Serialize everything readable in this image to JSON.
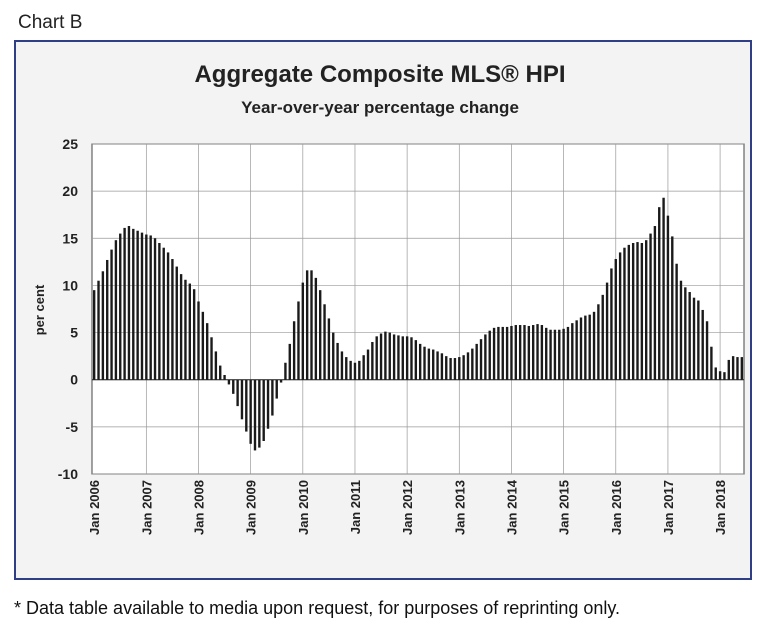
{
  "page_label": "Chart B",
  "footnote": "* Data table available to media upon request, for purposes of reprinting only.",
  "colors": {
    "frame_border": "#2f3f86",
    "background": "#f3f3f3",
    "bars": "#1a1a1a",
    "grid": "#999999"
  },
  "chart_data": {
    "type": "bar",
    "title": "Aggregate Composite MLS® HPI",
    "subtitle": "Year-over-year percentage change",
    "xlabel": "",
    "ylabel": "per cent",
    "ylim": [
      -10,
      25
    ],
    "yticks": [
      25,
      20,
      15,
      10,
      5,
      0,
      -5,
      -10
    ],
    "xtick_labels": [
      "Jan 2006",
      "Jan 2007",
      "Jan 2008",
      "Jan 2009",
      "Jan 2010",
      "Jan 2011",
      "Jan 2012",
      "Jan 2013",
      "Jan 2014",
      "Jan 2015",
      "Jan 2016",
      "Jan 2017",
      "Jan 2018"
    ],
    "grid": true,
    "legend": "none",
    "period_start": "Jan 2006",
    "frequency": "monthly",
    "values": [
      9.5,
      10.5,
      11.5,
      12.7,
      13.8,
      14.8,
      15.5,
      16.1,
      16.3,
      16.0,
      15.8,
      15.6,
      15.4,
      15.3,
      15.0,
      14.5,
      14.0,
      13.5,
      12.8,
      12.0,
      11.2,
      10.6,
      10.2,
      9.6,
      8.3,
      7.2,
      6.0,
      4.5,
      3.0,
      1.5,
      0.5,
      -0.5,
      -1.5,
      -2.8,
      -4.2,
      -5.5,
      -6.8,
      -7.5,
      -7.2,
      -6.5,
      -5.2,
      -3.8,
      -2.0,
      -0.3,
      1.8,
      3.8,
      6.2,
      8.3,
      10.3,
      11.6,
      11.6,
      10.8,
      9.5,
      8.0,
      6.5,
      5.0,
      3.9,
      3.0,
      2.4,
      2.0,
      1.8,
      2.0,
      2.6,
      3.2,
      4.0,
      4.6,
      4.9,
      5.1,
      5.0,
      4.8,
      4.7,
      4.6,
      4.6,
      4.5,
      4.2,
      3.8,
      3.5,
      3.3,
      3.2,
      3.0,
      2.8,
      2.5,
      2.3,
      2.3,
      2.4,
      2.6,
      2.9,
      3.3,
      3.8,
      4.3,
      4.8,
      5.2,
      5.5,
      5.6,
      5.6,
      5.6,
      5.7,
      5.8,
      5.8,
      5.8,
      5.7,
      5.8,
      5.9,
      5.8,
      5.5,
      5.3,
      5.3,
      5.3,
      5.4,
      5.6,
      6.0,
      6.3,
      6.6,
      6.8,
      6.9,
      7.2,
      8.0,
      9.0,
      10.3,
      11.8,
      12.8,
      13.5,
      14.0,
      14.3,
      14.5,
      14.6,
      14.5,
      14.8,
      15.5,
      16.3,
      18.3,
      19.3,
      17.4,
      15.2,
      12.3,
      10.5,
      9.8,
      9.3,
      8.7,
      8.4,
      7.4,
      6.2,
      3.5,
      1.3,
      0.9,
      0.8,
      2.1,
      2.5,
      2.4,
      2.4
    ]
  }
}
